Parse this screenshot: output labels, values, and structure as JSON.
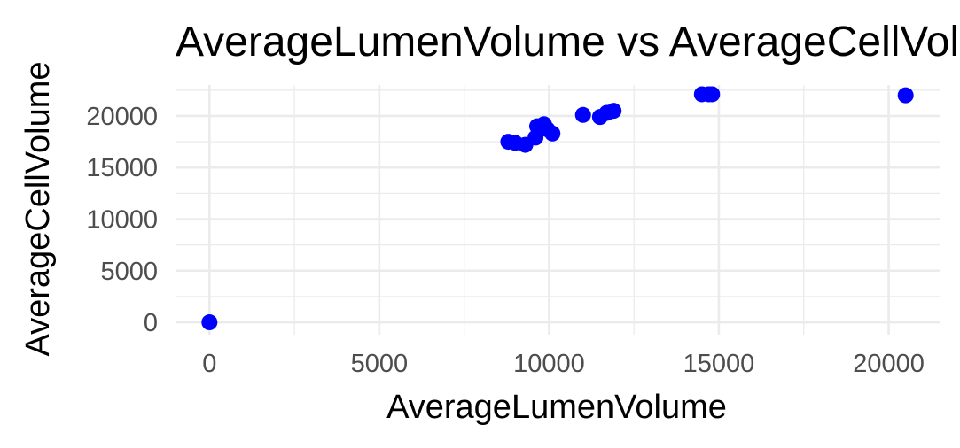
{
  "chart_data": {
    "type": "scatter",
    "title": "AverageLumenVolume vs AverageCellVolume",
    "xlabel": "AverageLumenVolume",
    "ylabel": "AverageCellVolume",
    "xlim": [
      -1000,
      21500
    ],
    "ylim": [
      -1200,
      23000
    ],
    "x_ticks": [
      0,
      5000,
      10000,
      15000,
      20000
    ],
    "y_ticks": [
      0,
      5000,
      10000,
      15000,
      20000
    ],
    "x_minor_ticks": [
      2500,
      7500,
      12500,
      17500
    ],
    "y_minor_ticks": [
      2500,
      7500,
      12500,
      17500,
      22500
    ],
    "grid": true,
    "marker_color": "#0000ff",
    "points": [
      {
        "x": 0,
        "y": 0
      },
      {
        "x": 8800,
        "y": 17500
      },
      {
        "x": 9000,
        "y": 17400
      },
      {
        "x": 9300,
        "y": 17200
      },
      {
        "x": 9600,
        "y": 17900
      },
      {
        "x": 9650,
        "y": 19000
      },
      {
        "x": 9850,
        "y": 19200
      },
      {
        "x": 9950,
        "y": 18700
      },
      {
        "x": 10100,
        "y": 18300
      },
      {
        "x": 11000,
        "y": 20100
      },
      {
        "x": 11500,
        "y": 19900
      },
      {
        "x": 11700,
        "y": 20300
      },
      {
        "x": 11900,
        "y": 20500
      },
      {
        "x": 14500,
        "y": 22100
      },
      {
        "x": 14700,
        "y": 22100
      },
      {
        "x": 14800,
        "y": 22100
      },
      {
        "x": 20500,
        "y": 22000
      }
    ]
  }
}
